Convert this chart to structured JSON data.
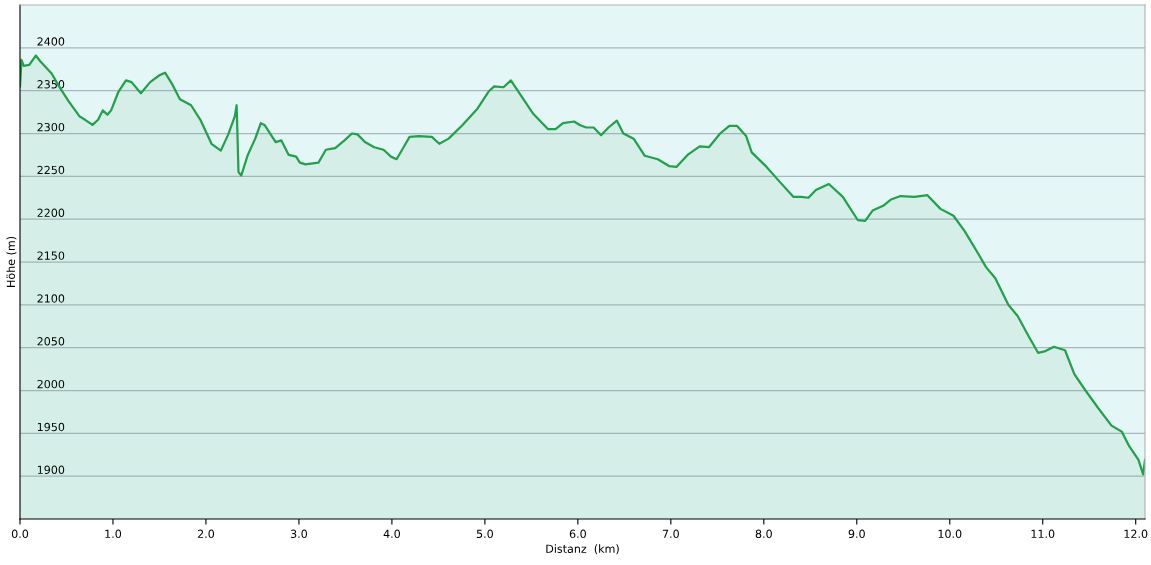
{
  "chart_data": {
    "type": "area",
    "xlabel": "Distanz  (km)",
    "ylabel": "Höhe (m)",
    "x": [
      0.0,
      0.016,
      0.04,
      0.1,
      0.17,
      0.22,
      0.34,
      0.42,
      0.52,
      0.64,
      0.7,
      0.78,
      0.84,
      0.89,
      0.94,
      0.98,
      1.06,
      1.14,
      1.2,
      1.3,
      1.4,
      1.5,
      1.56,
      1.64,
      1.72,
      1.84,
      1.94,
      2.06,
      2.16,
      2.24,
      2.31,
      2.33,
      2.35,
      2.38,
      2.45,
      2.53,
      2.59,
      2.63,
      2.75,
      2.81,
      2.89,
      2.97,
      3.01,
      3.07,
      3.21,
      3.29,
      3.39,
      3.49,
      3.57,
      3.63,
      3.71,
      3.81,
      3.91,
      3.99,
      4.05,
      4.11,
      4.19,
      4.29,
      4.43,
      4.51,
      4.61,
      4.76,
      4.92,
      5.04,
      5.1,
      5.2,
      5.28,
      5.36,
      5.52,
      5.68,
      5.76,
      5.84,
      5.96,
      6.02,
      6.09,
      6.17,
      6.25,
      6.33,
      6.42,
      6.49,
      6.6,
      6.72,
      6.86,
      6.98,
      7.06,
      7.18,
      7.31,
      7.41,
      7.53,
      7.63,
      7.71,
      7.81,
      7.87,
      8.03,
      8.16,
      8.32,
      8.4,
      8.48,
      8.56,
      8.7,
      8.85,
      9.01,
      9.09,
      9.17,
      9.29,
      9.37,
      9.47,
      9.62,
      9.76,
      9.9,
      10.04,
      10.16,
      10.31,
      10.39,
      10.49,
      10.63,
      10.73,
      10.85,
      10.95,
      11.03,
      11.12,
      11.24,
      11.34,
      11.46,
      11.6,
      11.74,
      11.85,
      11.93,
      12.03,
      12.08,
      12.1
    ],
    "series": [
      {
        "color": "#22a04b",
        "values": [
          2355,
          2386,
          2379,
          2380,
          2391,
          2384,
          2370,
          2355,
          2338,
          2320,
          2316,
          2310,
          2316,
          2327,
          2322,
          2327,
          2349,
          2362,
          2360,
          2347,
          2360,
          2368,
          2371,
          2357,
          2340,
          2333,
          2316,
          2288,
          2280,
          2299,
          2320,
          2333,
          2255,
          2251,
          2275,
          2294,
          2312,
          2310,
          2290,
          2292,
          2275,
          2273,
          2266,
          2264,
          2266,
          2281,
          2283,
          2292,
          2300,
          2299,
          2290,
          2284,
          2281,
          2273,
          2270,
          2281,
          2296,
          2297,
          2296,
          2288,
          2294,
          2310,
          2329,
          2349,
          2355,
          2354,
          2362,
          2349,
          2323,
          2305,
          2305,
          2312,
          2314,
          2310,
          2307,
          2307,
          2298,
          2307,
          2315,
          2300,
          2294,
          2274,
          2270,
          2262,
          2261,
          2275,
          2285,
          2284,
          2300,
          2309,
          2309,
          2297,
          2278,
          2261,
          2245,
          2226,
          2226,
          2225,
          2234,
          2241,
          2226,
          2199,
          2198,
          2210,
          2216,
          2223,
          2227,
          2226,
          2228,
          2212,
          2204,
          2186,
          2159,
          2144,
          2131,
          2100,
          2087,
          2063,
          2044,
          2046,
          2051,
          2047,
          2019,
          2000,
          1979,
          1959,
          1952,
          1935,
          1919,
          1902,
          1919
        ]
      }
    ],
    "xlim": [
      0,
      12.1
    ],
    "ylim": [
      1850,
      2450
    ],
    "xticks": [
      {
        "value": 0,
        "label": "0.0"
      },
      {
        "value": 1,
        "label": "1.0"
      },
      {
        "value": 2,
        "label": "2.0"
      },
      {
        "value": 3,
        "label": "3.0"
      },
      {
        "value": 4,
        "label": "4.0"
      },
      {
        "value": 5,
        "label": "5.0"
      },
      {
        "value": 6,
        "label": "6.0"
      },
      {
        "value": 7,
        "label": "7.0"
      },
      {
        "value": 8,
        "label": "8.0"
      },
      {
        "value": 9,
        "label": "9.0"
      },
      {
        "value": 10,
        "label": "10.0"
      },
      {
        "value": 11,
        "label": "11.0"
      },
      {
        "value": 12,
        "label": "12.0"
      }
    ],
    "yticks": [
      1900,
      1950,
      2000,
      2050,
      2100,
      2150,
      2200,
      2250,
      2300,
      2350,
      2400
    ],
    "grid": "y"
  }
}
